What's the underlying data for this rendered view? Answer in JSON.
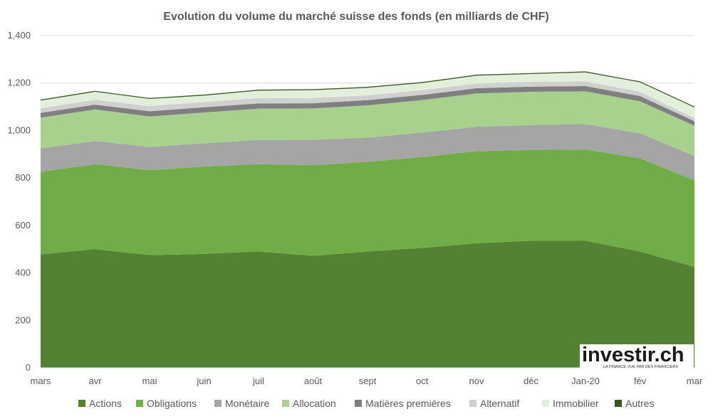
{
  "chart_data": {
    "type": "area",
    "stacked": true,
    "title": "Evolution du volume du marché suisse des fonds (en milliards de CHF)",
    "categories": [
      "mars",
      "avr",
      "mai",
      "juin",
      "juil",
      "août",
      "sept",
      "oct",
      "nov",
      "déc",
      "Jan-20",
      "fév",
      "mar"
    ],
    "ylim": [
      0,
      1400
    ],
    "yticks": [
      0,
      200,
      400,
      600,
      800,
      1000,
      1200,
      1400
    ],
    "ytick_labels": [
      "0",
      "200",
      "400",
      "600",
      "800",
      "1,000",
      "1,200",
      "1,400"
    ],
    "grid": true,
    "legend_position": "bottom",
    "series": [
      {
        "name": "Actions",
        "color": "#548235",
        "values": [
          478,
          500,
          475,
          480,
          490,
          472,
          490,
          505,
          525,
          535,
          535,
          490,
          425
        ]
      },
      {
        "name": "Obligations",
        "color": "#70ad47",
        "values": [
          348,
          358,
          358,
          368,
          368,
          382,
          378,
          383,
          388,
          383,
          385,
          393,
          365
        ]
      },
      {
        "name": "Monétaire",
        "color": "#a5a5a5",
        "values": [
          98,
          98,
          98,
          98,
          102,
          107,
          102,
          103,
          103,
          105,
          107,
          105,
          103
        ]
      },
      {
        "name": "Allocation",
        "color": "#a9d18e",
        "values": [
          130,
          133,
          128,
          130,
          132,
          132,
          136,
          137,
          140,
          140,
          138,
          135,
          127
        ]
      },
      {
        "name": "Matières premières",
        "color": "#7f7f7f",
        "values": [
          20,
          20,
          22,
          22,
          22,
          22,
          22,
          22,
          22,
          22,
          22,
          22,
          19
        ]
      },
      {
        "name": "Alternatif",
        "color": "#d0d0d0",
        "values": [
          20,
          20,
          22,
          22,
          22,
          22,
          20,
          20,
          20,
          20,
          20,
          18,
          13
        ]
      },
      {
        "name": "Immobilier",
        "color": "#e2efda",
        "values": [
          32,
          34,
          30,
          27,
          32,
          33,
          32,
          30,
          33,
          33,
          38,
          40,
          45
        ]
      },
      {
        "name": "Autres",
        "color": "#375623",
        "values": [
          4,
          4,
          4,
          4,
          4,
          4,
          4,
          4,
          4,
          4,
          4,
          4,
          4
        ]
      }
    ]
  },
  "logo": {
    "text": "investir.ch",
    "subtitle": "LA FINANCE VUE PAR DES FINANCIERS"
  }
}
